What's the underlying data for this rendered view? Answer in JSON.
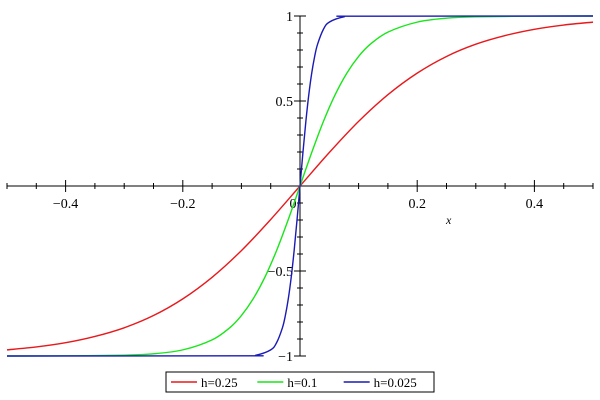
{
  "chart_data": {
    "type": "line",
    "xlabel": "x",
    "ylabel": "",
    "xlim": [
      -0.5,
      0.5
    ],
    "ylim": [
      -1,
      1
    ],
    "x_ticks": [
      -0.4,
      -0.2,
      0,
      0.2,
      0.4
    ],
    "x_tick_labels": [
      "−0.4",
      "−0.2",
      "0",
      "0.2",
      "0.4"
    ],
    "y_ticks": [
      -1,
      -0.5,
      0.5,
      1
    ],
    "y_tick_labels": [
      "−1",
      "−0.5",
      "0.5",
      "1"
    ],
    "grid": false,
    "legend_position": "bottom",
    "series": [
      {
        "name": "h=0.25",
        "color": "#e8191c",
        "x": [
          -0.5,
          -0.45,
          -0.4,
          -0.35,
          -0.3,
          -0.25,
          -0.2,
          -0.15,
          -0.1,
          -0.05,
          0,
          0.05,
          0.1,
          0.15,
          0.2,
          0.25,
          0.3,
          0.35,
          0.4,
          0.45,
          0.5
        ],
        "y": [
          -0.964,
          -0.947,
          -0.922,
          -0.885,
          -0.834,
          -0.762,
          -0.664,
          -0.537,
          -0.38,
          -0.197,
          0,
          0.197,
          0.38,
          0.537,
          0.664,
          0.762,
          0.834,
          0.885,
          0.922,
          0.947,
          0.964
        ]
      },
      {
        "name": "h=0.1",
        "color": "#19e619",
        "x": [
          -0.5,
          -0.4,
          -0.3,
          -0.25,
          -0.2,
          -0.15,
          -0.12,
          -0.1,
          -0.08,
          -0.06,
          -0.04,
          -0.02,
          0,
          0.02,
          0.04,
          0.06,
          0.08,
          0.1,
          0.12,
          0.15,
          0.2,
          0.25,
          0.3,
          0.4,
          0.5
        ],
        "y": [
          -1.0,
          -0.999,
          -0.995,
          -0.987,
          -0.964,
          -0.905,
          -0.834,
          -0.762,
          -0.664,
          -0.537,
          -0.38,
          -0.197,
          0,
          0.197,
          0.38,
          0.537,
          0.664,
          0.762,
          0.834,
          0.905,
          0.964,
          0.987,
          0.995,
          0.999,
          1.0
        ]
      },
      {
        "name": "h=0.025",
        "color": "#1a1ab5",
        "x": [
          -0.5,
          -0.1,
          -0.075,
          -0.05,
          -0.04,
          -0.03,
          -0.025,
          -0.02,
          -0.015,
          -0.01,
          -0.005,
          0,
          0.005,
          0.01,
          0.015,
          0.02,
          0.025,
          0.03,
          0.04,
          0.05,
          0.075,
          0.1,
          0.5
        ],
        "y": [
          -1.0,
          -0.999,
          -0.995,
          -0.964,
          -0.922,
          -0.834,
          -0.762,
          -0.664,
          -0.537,
          -0.38,
          -0.197,
          0,
          0.197,
          0.38,
          0.537,
          0.664,
          0.762,
          0.834,
          0.922,
          0.964,
          0.995,
          0.999,
          1.0
        ]
      }
    ]
  }
}
